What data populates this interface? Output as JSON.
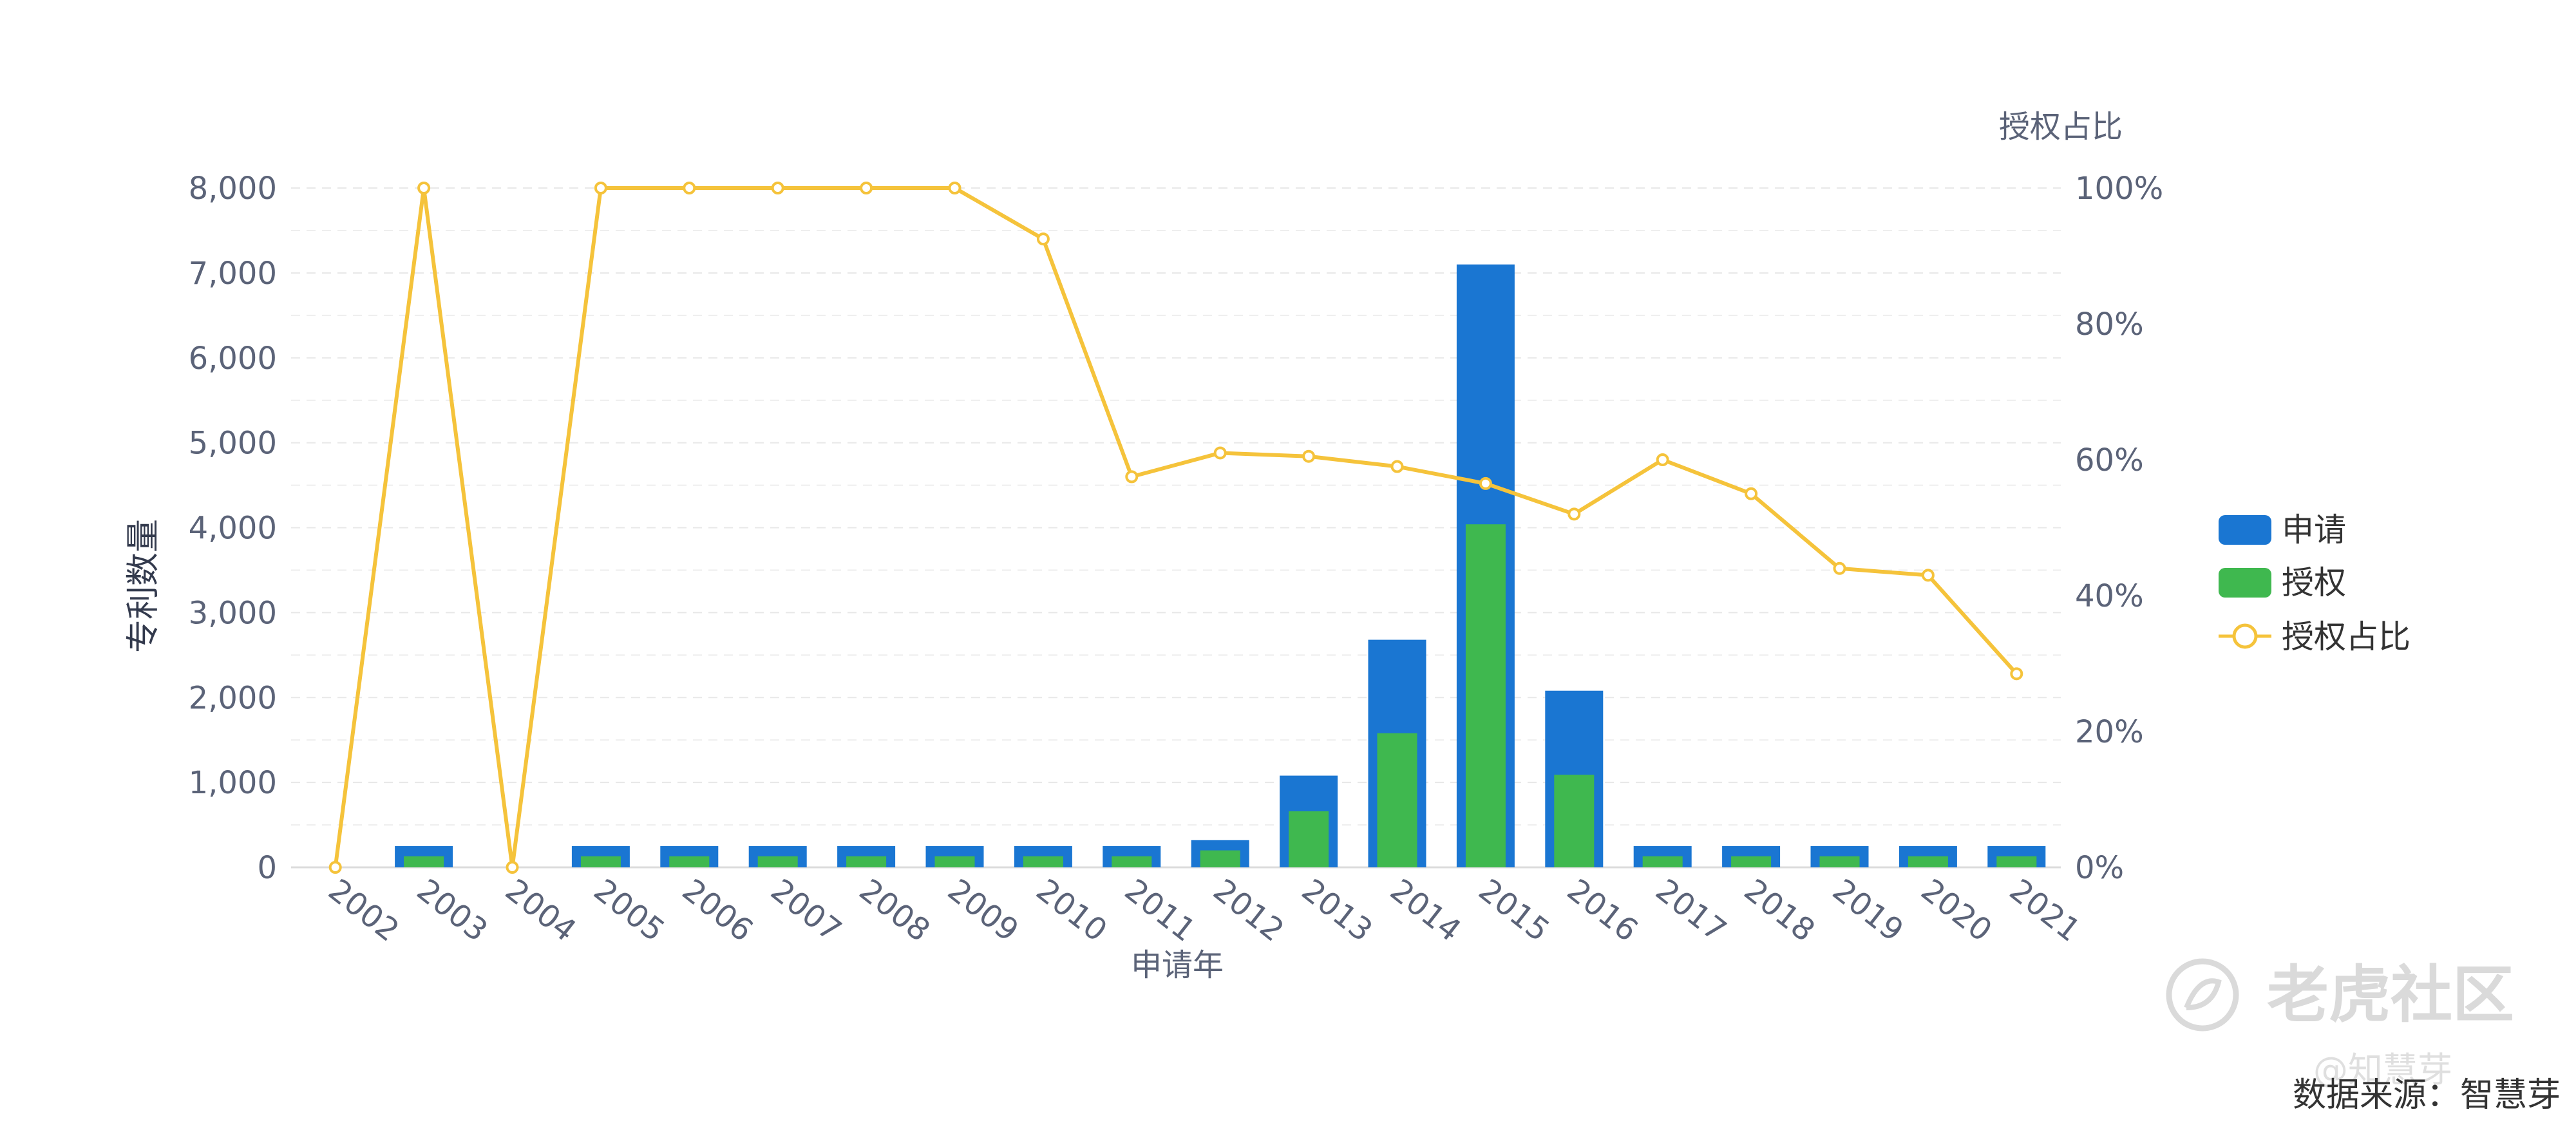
{
  "colors": {
    "apply": "#1a76d2",
    "grant": "#3fb84f",
    "ratio": "#f5c33b",
    "axis_text": "#5b6378",
    "grid": "#e8e8e8"
  },
  "legend": {
    "apply": "申请",
    "grant": "授权",
    "ratio": "授权占比"
  },
  "watermark": {
    "brand": "老虎社区",
    "sub": "@知慧芽"
  },
  "source_note": "数据来源：智慧芽",
  "chart_data": {
    "type": "bar",
    "xlabel": "申请年",
    "ylabel": "专利数量",
    "y2label": "授权占比",
    "ylim": [
      0,
      8000
    ],
    "yticks": [
      "0",
      "1,000",
      "2,000",
      "3,000",
      "4,000",
      "5,000",
      "6,000",
      "7,000",
      "8,000"
    ],
    "y2lim": [
      0,
      100
    ],
    "y2ticks": [
      "0%",
      "20%",
      "40%",
      "60%",
      "80%",
      "100%"
    ],
    "grid": true,
    "legend_position": "right",
    "categories": [
      "2002",
      "2003",
      "2004",
      "2005",
      "2006",
      "2007",
      "2008",
      "2009",
      "2010",
      "2011",
      "2012",
      "2013",
      "2014",
      "2015",
      "2016",
      "2017",
      "2018",
      "2019",
      "2020",
      "2021"
    ],
    "series": [
      {
        "name": "申请",
        "type": "bar",
        "values": [
          0,
          250,
          0,
          250,
          250,
          250,
          250,
          250,
          250,
          250,
          320,
          1080,
          2680,
          7100,
          2080,
          250,
          250,
          250,
          250,
          250
        ]
      },
      {
        "name": "授权",
        "type": "bar",
        "values": [
          0,
          130,
          0,
          130,
          130,
          130,
          130,
          130,
          130,
          130,
          200,
          660,
          1580,
          4040,
          1090,
          130,
          130,
          130,
          130,
          130
        ]
      },
      {
        "name": "授权占比",
        "type": "line",
        "axis": "right",
        "values": [
          0,
          100,
          0,
          100,
          100,
          100,
          100,
          100,
          92.5,
          57.5,
          61,
          60.5,
          59,
          56.5,
          52,
          60,
          55,
          44,
          43,
          28.5
        ]
      }
    ]
  }
}
